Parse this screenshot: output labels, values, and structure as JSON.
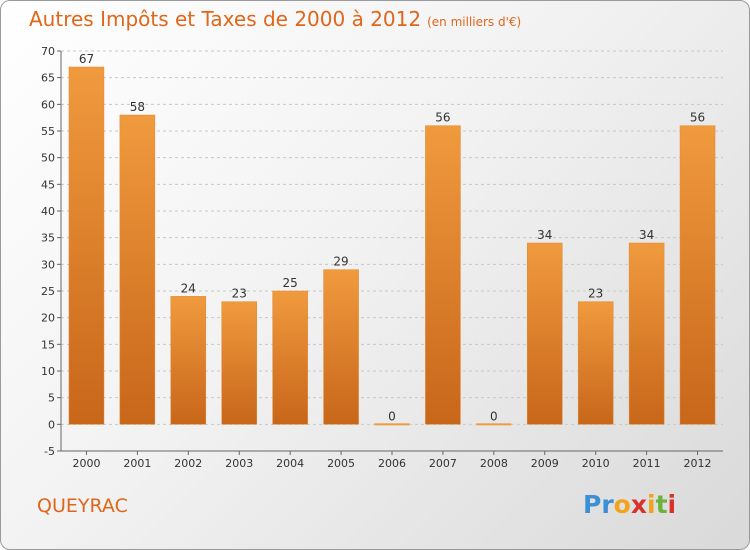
{
  "title": "Autres Impôts et Taxes de 2000 à 2012",
  "subtitle": "(en milliers d'€)",
  "commune": "QUEYRAC",
  "logo": {
    "letters": [
      "P",
      "r",
      "o",
      "x",
      "i",
      "t",
      "i"
    ],
    "colors": [
      "#3a8fd6",
      "#3a8fd6",
      "#f2a31c",
      "#d9322b",
      "#f2a31c",
      "#6cb33e",
      "#d9322b"
    ]
  },
  "colors": {
    "bar": "#f09a3e",
    "bar_dark": "#c8661a",
    "title": "#e0661a"
  },
  "chart_data": {
    "type": "bar",
    "categories": [
      "2000",
      "2001",
      "2002",
      "2003",
      "2004",
      "2005",
      "2006",
      "2007",
      "2008",
      "2009",
      "2010",
      "2011",
      "2012"
    ],
    "values": [
      67,
      58,
      24,
      23,
      25,
      29,
      0,
      56,
      0,
      34,
      23,
      34,
      56
    ],
    "data_labels": [
      "67",
      "58",
      "24",
      "23",
      "25",
      "29",
      "0",
      "56",
      "0",
      "34",
      "23",
      "34",
      "56"
    ],
    "title": "Autres Impôts et Taxes de 2000 à 2012",
    "xlabel": "",
    "ylabel": "",
    "ylim": [
      -5,
      70
    ],
    "yticks": [
      -5,
      0,
      5,
      10,
      15,
      20,
      25,
      30,
      35,
      40,
      45,
      50,
      55,
      60,
      65,
      70
    ],
    "grid": true
  }
}
